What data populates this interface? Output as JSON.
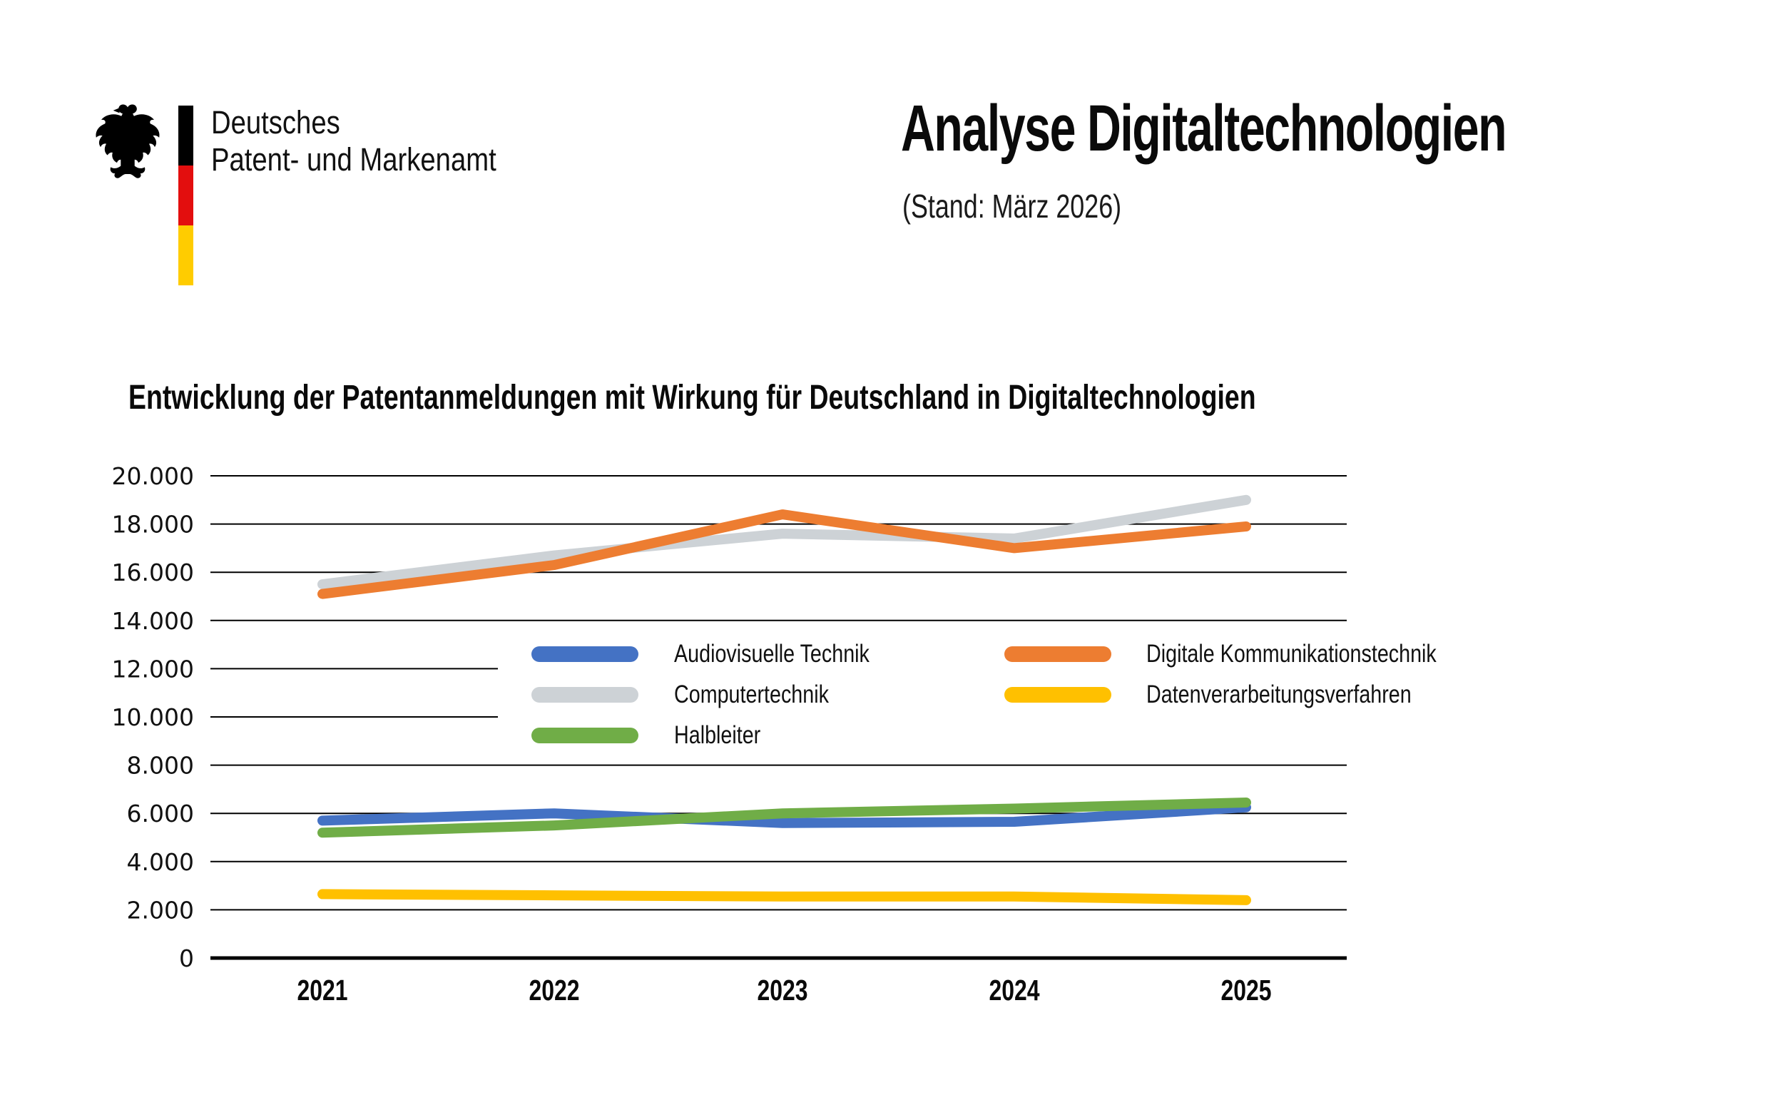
{
  "header": {
    "logo": {
      "org_line1": "Deutsches",
      "org_line2": "Patent- und Markenamt",
      "flag_colors": [
        "#000000",
        "#E30E0E",
        "#FFCC00"
      ]
    },
    "title": "Analyse Digitaltechnologien",
    "subtitle": "(Stand: März 2026)"
  },
  "chart_title": "Entwicklung der Patentanmeldungen mit Wirkung für Deutschland in Digitaltechnologien",
  "chart_data": {
    "type": "line",
    "x": [
      "2021",
      "2022",
      "2023",
      "2024",
      "2025"
    ],
    "series": [
      {
        "name": "Audiovisuelle Technik",
        "color": "#4472C4",
        "values": [
          5700,
          6000,
          5600,
          5650,
          6250
        ]
      },
      {
        "name": "Digitale Kommunikationstechnik",
        "color": "#ED7D31",
        "values": [
          15100,
          16300,
          18400,
          17000,
          17900
        ]
      },
      {
        "name": "Computertechnik",
        "color": "#CDD2D6",
        "values": [
          15500,
          16700,
          17600,
          17400,
          19000
        ]
      },
      {
        "name": "Datenverarbeitungsverfahren",
        "color": "#FFC000",
        "values": [
          2650,
          2600,
          2550,
          2550,
          2400
        ]
      },
      {
        "name": "Halbleiter",
        "color": "#70AD47",
        "values": [
          5200,
          5500,
          6000,
          6200,
          6450
        ]
      }
    ],
    "ylim": [
      0,
      20000
    ],
    "ytick_step": 2000,
    "ytick_labels": [
      "20.000",
      "18.000",
      "16.000",
      "14.000",
      "12.000",
      "10.000",
      "8.000",
      "6.000",
      "4.000",
      "2.000",
      "0"
    ],
    "grid": true,
    "legend_position": "inside-center"
  }
}
